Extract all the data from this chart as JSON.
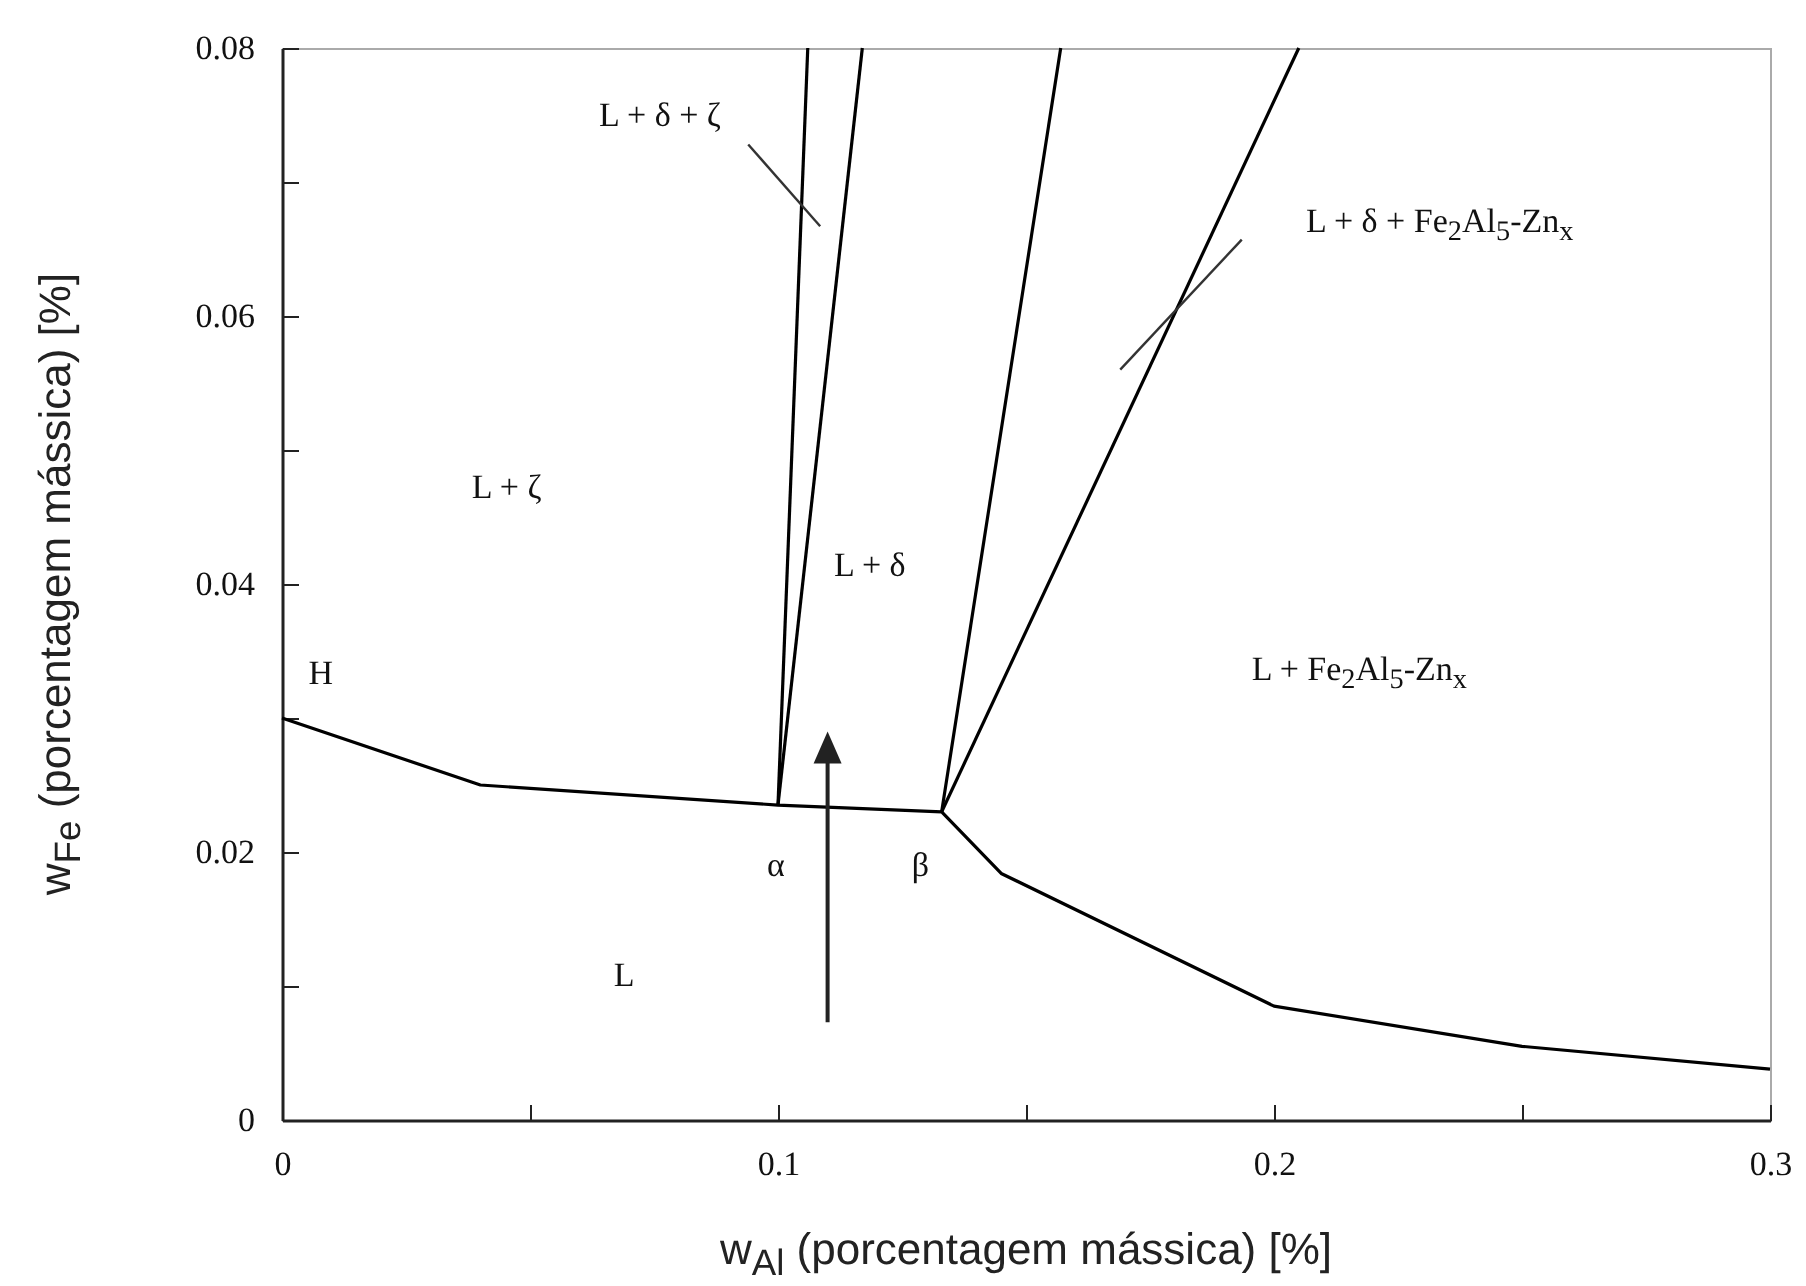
{
  "chart_data": {
    "type": "line",
    "xlabel": "w$_{Al}$ (porcentagem mássica) [%]",
    "ylabel": "w$_{Fe}$ (porcentagem mássica) [%]",
    "xlim": [
      0,
      0.3
    ],
    "ylim": [
      0,
      0.08
    ],
    "xticks": [
      0,
      {
        "value": 0.05,
        "label": null
      },
      0.1,
      {
        "value": 0.15,
        "label": null
      },
      0.2,
      {
        "value": 0.25,
        "label": null
      },
      0.3
    ],
    "yticks": [
      0,
      {
        "value": 0.01,
        "label": null
      },
      0.02,
      {
        "value": 0.03,
        "label": null
      },
      0.04,
      {
        "value": 0.05,
        "label": null
      },
      0.06,
      {
        "value": 0.07,
        "label": null
      },
      0.08
    ],
    "series": [
      {
        "color": "#000000",
        "x": [
          0,
          0.04,
          0.1,
          0.133,
          0.145,
          0.2,
          0.25,
          0.3
        ],
        "values": [
          0.03,
          0.025,
          0.0235,
          0.023,
          0.0184,
          0.0085,
          0.0055,
          0.0038
        ]
      },
      {
        "color": "#000000",
        "x": [
          0.1,
          0.106
        ],
        "values": [
          0.0235,
          0.08
        ]
      },
      {
        "color": "#000000",
        "x": [
          0.1,
          0.117
        ],
        "values": [
          0.0235,
          0.08
        ]
      },
      {
        "color": "#000000",
        "x": [
          0.133,
          0.157
        ],
        "values": [
          0.023,
          0.08
        ]
      },
      {
        "color": "#000000",
        "x": [
          0.133,
          0.205
        ],
        "values": [
          0.023,
          0.08
        ]
      }
    ],
    "annotations": [
      "L + δ + ζ",
      "L + ζ",
      "L + δ",
      "L + δ + Fe$_{2}$Al$_{5}$-Zn$_{x}$",
      "L + Fe$_{2}$Al$_{5}$-Zn$_{x}$",
      "H",
      "α",
      "β",
      "L"
    ],
    "grid": false,
    "marker": "none",
    "line_style": "solid"
  }
}
